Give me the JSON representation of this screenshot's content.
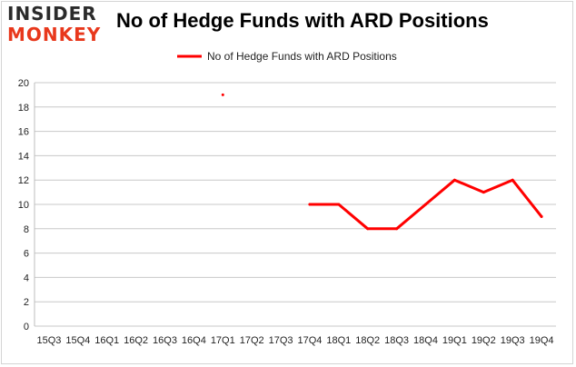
{
  "logo": {
    "top": "INSIDER",
    "bottom": "MONKEY"
  },
  "colors": {
    "series": "#ff0000",
    "grid": "#c8c8c8",
    "logo_accent": "#e8381c"
  },
  "chart_data": {
    "type": "line",
    "title": "No of Hedge Funds with ARD Positions",
    "xlabel": "",
    "ylabel": "",
    "ylim": [
      0,
      20
    ],
    "yticks": [
      0,
      2,
      4,
      6,
      8,
      10,
      12,
      14,
      16,
      18,
      20
    ],
    "grid": true,
    "legend_position": "top",
    "categories": [
      "15Q3",
      "15Q4",
      "16Q1",
      "16Q2",
      "16Q3",
      "16Q4",
      "17Q1",
      "17Q2",
      "17Q3",
      "17Q4",
      "18Q1",
      "18Q2",
      "18Q3",
      "18Q4",
      "19Q1",
      "19Q2",
      "19Q3",
      "19Q4"
    ],
    "series": [
      {
        "name": "No of Hedge Funds with ARD Positions",
        "values": [
          null,
          null,
          null,
          null,
          null,
          null,
          19,
          null,
          null,
          10,
          10,
          8,
          8,
          10,
          12,
          11,
          12,
          9
        ]
      }
    ]
  }
}
